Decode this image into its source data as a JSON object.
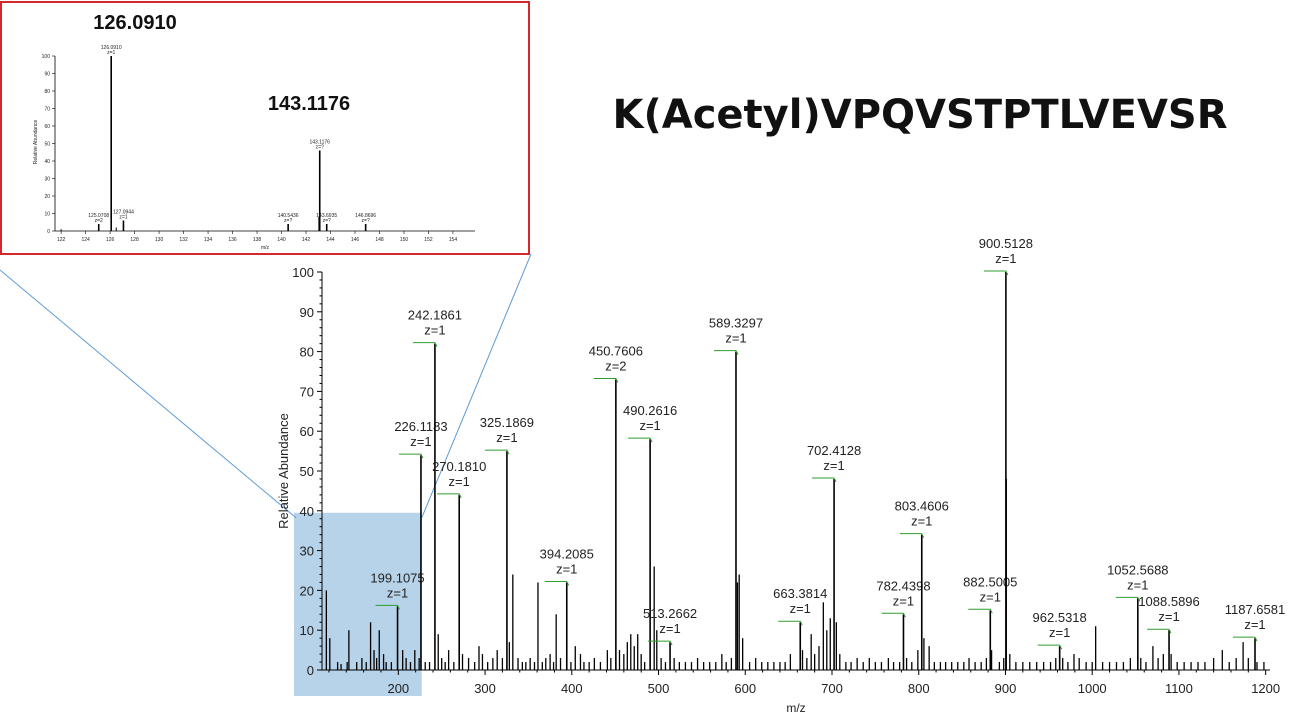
{
  "peptide_title": "K(Acetyl)VPQVSTPTLVEVSR",
  "colors": {
    "inset_border": "#d62828",
    "highlight_fill": "#b7d3ea",
    "connector": "#5b9bd5",
    "tick_marker": "#2e9e2e"
  },
  "chart_data": [
    {
      "id": "main",
      "type": "bar",
      "xlabel": "m/z",
      "ylabel": "Relative Abundance",
      "xlim": [
        112,
        1205
      ],
      "ylim": [
        0,
        100
      ],
      "x_ticks": [
        "200",
        "300",
        "400",
        "500",
        "600",
        "700",
        "800",
        "900",
        "1000",
        "1100",
        "1200"
      ],
      "y_ticks": [
        "0",
        "10",
        "20",
        "30",
        "40",
        "50",
        "60",
        "70",
        "80",
        "90",
        "100"
      ],
      "highlight_region": {
        "x_range": [
          112,
          227
        ],
        "y_range": [
          0,
          39.5
        ]
      },
      "labeled_peaks": [
        {
          "mz": 199.1,
          "intensity": 16,
          "label": "199.1075",
          "charge": "z=1"
        },
        {
          "mz": 226.1,
          "intensity": 54,
          "label": "226.1183",
          "charge": "z=1"
        },
        {
          "mz": 242.2,
          "intensity": 82,
          "label": "242.1861",
          "charge": "z=1"
        },
        {
          "mz": 270.2,
          "intensity": 44,
          "label": "270.1810",
          "charge": "z=1"
        },
        {
          "mz": 325.2,
          "intensity": 55,
          "label": "325.1869",
          "charge": "z=1"
        },
        {
          "mz": 394.2,
          "intensity": 22,
          "label": "394.2085",
          "charge": "z=1"
        },
        {
          "mz": 450.8,
          "intensity": 73,
          "label": "450.7606",
          "charge": "z=2"
        },
        {
          "mz": 490.3,
          "intensity": 58,
          "label": "490.2616",
          "charge": "z=1"
        },
        {
          "mz": 513.3,
          "intensity": 7,
          "label": "513.2662",
          "charge": "z=1"
        },
        {
          "mz": 589.3,
          "intensity": 80,
          "label": "589.3297",
          "charge": "z=1"
        },
        {
          "mz": 663.4,
          "intensity": 12,
          "label": "663.3814",
          "charge": "z=1"
        },
        {
          "mz": 702.4,
          "intensity": 48,
          "label": "702.4128",
          "charge": "z=1"
        },
        {
          "mz": 782.4,
          "intensity": 14,
          "label": "782.4398",
          "charge": "z=1"
        },
        {
          "mz": 803.5,
          "intensity": 34,
          "label": "803.4606",
          "charge": "z=1"
        },
        {
          "mz": 882.5,
          "intensity": 15,
          "label": "882.5005",
          "charge": "z=1"
        },
        {
          "mz": 900.5,
          "intensity": 100,
          "label": "900.5128",
          "charge": "z=1"
        },
        {
          "mz": 962.5,
          "intensity": 6,
          "label": "962.5318",
          "charge": "z=1"
        },
        {
          "mz": 1052.6,
          "intensity": 18,
          "label": "1052.5688",
          "charge": "z=1"
        },
        {
          "mz": 1088.6,
          "intensity": 10,
          "label": "1088.5896",
          "charge": "z=1"
        },
        {
          "mz": 1187.7,
          "intensity": 8,
          "label": "1187.6581",
          "charge": "z=1"
        }
      ],
      "unlabeled_peaks": [
        {
          "mz": 117,
          "intensity": 20
        },
        {
          "mz": 121,
          "intensity": 8
        },
        {
          "mz": 130,
          "intensity": 2
        },
        {
          "mz": 134,
          "intensity": 1.5
        },
        {
          "mz": 141,
          "intensity": 2
        },
        {
          "mz": 143,
          "intensity": 10
        },
        {
          "mz": 152,
          "intensity": 2
        },
        {
          "mz": 158,
          "intensity": 3
        },
        {
          "mz": 163,
          "intensity": 2
        },
        {
          "mz": 168,
          "intensity": 12
        },
        {
          "mz": 172,
          "intensity": 5
        },
        {
          "mz": 175,
          "intensity": 3
        },
        {
          "mz": 178,
          "intensity": 10
        },
        {
          "mz": 183,
          "intensity": 4
        },
        {
          "mz": 186,
          "intensity": 2
        },
        {
          "mz": 192,
          "intensity": 2
        },
        {
          "mz": 205,
          "intensity": 5
        },
        {
          "mz": 209,
          "intensity": 3
        },
        {
          "mz": 214,
          "intensity": 2
        },
        {
          "mz": 219,
          "intensity": 5
        },
        {
          "mz": 224,
          "intensity": 3
        },
        {
          "mz": 231,
          "intensity": 2
        },
        {
          "mz": 236,
          "intensity": 2
        },
        {
          "mz": 246,
          "intensity": 9
        },
        {
          "mz": 250,
          "intensity": 3
        },
        {
          "mz": 254,
          "intensity": 2
        },
        {
          "mz": 258,
          "intensity": 5
        },
        {
          "mz": 264,
          "intensity": 2
        },
        {
          "mz": 274,
          "intensity": 4
        },
        {
          "mz": 281,
          "intensity": 3
        },
        {
          "mz": 288,
          "intensity": 2
        },
        {
          "mz": 293,
          "intensity": 6
        },
        {
          "mz": 297,
          "intensity": 4
        },
        {
          "mz": 303,
          "intensity": 2
        },
        {
          "mz": 309,
          "intensity": 3
        },
        {
          "mz": 314,
          "intensity": 5
        },
        {
          "mz": 320,
          "intensity": 3
        },
        {
          "mz": 328,
          "intensity": 7
        },
        {
          "mz": 332,
          "intensity": 24
        },
        {
          "mz": 338,
          "intensity": 3
        },
        {
          "mz": 343,
          "intensity": 2
        },
        {
          "mz": 347,
          "intensity": 2
        },
        {
          "mz": 352,
          "intensity": 3
        },
        {
          "mz": 357,
          "intensity": 2
        },
        {
          "mz": 361,
          "intensity": 22
        },
        {
          "mz": 366,
          "intensity": 2
        },
        {
          "mz": 370,
          "intensity": 3
        },
        {
          "mz": 375,
          "intensity": 4
        },
        {
          "mz": 379,
          "intensity": 2
        },
        {
          "mz": 382,
          "intensity": 14
        },
        {
          "mz": 387,
          "intensity": 3
        },
        {
          "mz": 399,
          "intensity": 2
        },
        {
          "mz": 404,
          "intensity": 6
        },
        {
          "mz": 410,
          "intensity": 4
        },
        {
          "mz": 414,
          "intensity": 2
        },
        {
          "mz": 420,
          "intensity": 2
        },
        {
          "mz": 426,
          "intensity": 3
        },
        {
          "mz": 433,
          "intensity": 2
        },
        {
          "mz": 441,
          "intensity": 5
        },
        {
          "mz": 445,
          "intensity": 3
        },
        {
          "mz": 455,
          "intensity": 5
        },
        {
          "mz": 460,
          "intensity": 4
        },
        {
          "mz": 464,
          "intensity": 7
        },
        {
          "mz": 468,
          "intensity": 9
        },
        {
          "mz": 472,
          "intensity": 6
        },
        {
          "mz": 476,
          "intensity": 9
        },
        {
          "mz": 480,
          "intensity": 4
        },
        {
          "mz": 484,
          "intensity": 2
        },
        {
          "mz": 495,
          "intensity": 26
        },
        {
          "mz": 498,
          "intensity": 10
        },
        {
          "mz": 503,
          "intensity": 3
        },
        {
          "mz": 508,
          "intensity": 2
        },
        {
          "mz": 518,
          "intensity": 3
        },
        {
          "mz": 524,
          "intensity": 2
        },
        {
          "mz": 531,
          "intensity": 2
        },
        {
          "mz": 538,
          "intensity": 2
        },
        {
          "mz": 545,
          "intensity": 3
        },
        {
          "mz": 552,
          "intensity": 2
        },
        {
          "mz": 559,
          "intensity": 2
        },
        {
          "mz": 566,
          "intensity": 2
        },
        {
          "mz": 573,
          "intensity": 4
        },
        {
          "mz": 578,
          "intensity": 2
        },
        {
          "mz": 584,
          "intensity": 3
        },
        {
          "mz": 591,
          "intensity": 22
        },
        {
          "mz": 593,
          "intensity": 24
        },
        {
          "mz": 597,
          "intensity": 8
        },
        {
          "mz": 605,
          "intensity": 2
        },
        {
          "mz": 612,
          "intensity": 3
        },
        {
          "mz": 619,
          "intensity": 2
        },
        {
          "mz": 626,
          "intensity": 2
        },
        {
          "mz": 633,
          "intensity": 2
        },
        {
          "mz": 640,
          "intensity": 2
        },
        {
          "mz": 646,
          "intensity": 2
        },
        {
          "mz": 652,
          "intensity": 4
        },
        {
          "mz": 666,
          "intensity": 5
        },
        {
          "mz": 671,
          "intensity": 3
        },
        {
          "mz": 676,
          "intensity": 9
        },
        {
          "mz": 680,
          "intensity": 4
        },
        {
          "mz": 685,
          "intensity": 6
        },
        {
          "mz": 690,
          "intensity": 17
        },
        {
          "mz": 694,
          "intensity": 10
        },
        {
          "mz": 698,
          "intensity": 13
        },
        {
          "mz": 705,
          "intensity": 12
        },
        {
          "mz": 709,
          "intensity": 4
        },
        {
          "mz": 716,
          "intensity": 2
        },
        {
          "mz": 722,
          "intensity": 2
        },
        {
          "mz": 729,
          "intensity": 3
        },
        {
          "mz": 736,
          "intensity": 2
        },
        {
          "mz": 743,
          "intensity": 3
        },
        {
          "mz": 750,
          "intensity": 2
        },
        {
          "mz": 757,
          "intensity": 2
        },
        {
          "mz": 765,
          "intensity": 3
        },
        {
          "mz": 771,
          "intensity": 2
        },
        {
          "mz": 778,
          "intensity": 2
        },
        {
          "mz": 786,
          "intensity": 3
        },
        {
          "mz": 792,
          "intensity": 2
        },
        {
          "mz": 799,
          "intensity": 5
        },
        {
          "mz": 806,
          "intensity": 8
        },
        {
          "mz": 812,
          "intensity": 6
        },
        {
          "mz": 818,
          "intensity": 2
        },
        {
          "mz": 825,
          "intensity": 2
        },
        {
          "mz": 831,
          "intensity": 2
        },
        {
          "mz": 838,
          "intensity": 2
        },
        {
          "mz": 845,
          "intensity": 2
        },
        {
          "mz": 852,
          "intensity": 2
        },
        {
          "mz": 858,
          "intensity": 3
        },
        {
          "mz": 865,
          "intensity": 2
        },
        {
          "mz": 872,
          "intensity": 2
        },
        {
          "mz": 878,
          "intensity": 3
        },
        {
          "mz": 884,
          "intensity": 5
        },
        {
          "mz": 893,
          "intensity": 2
        },
        {
          "mz": 898,
          "intensity": 3
        },
        {
          "mz": 901,
          "intensity": 48
        },
        {
          "mz": 905,
          "intensity": 4
        },
        {
          "mz": 912,
          "intensity": 2
        },
        {
          "mz": 920,
          "intensity": 2
        },
        {
          "mz": 928,
          "intensity": 2
        },
        {
          "mz": 936,
          "intensity": 2
        },
        {
          "mz": 944,
          "intensity": 2
        },
        {
          "mz": 952,
          "intensity": 2
        },
        {
          "mz": 958,
          "intensity": 3
        },
        {
          "mz": 966,
          "intensity": 3
        },
        {
          "mz": 972,
          "intensity": 2
        },
        {
          "mz": 979,
          "intensity": 4
        },
        {
          "mz": 985,
          "intensity": 3
        },
        {
          "mz": 993,
          "intensity": 2
        },
        {
          "mz": 1000,
          "intensity": 2
        },
        {
          "mz": 1004,
          "intensity": 11
        },
        {
          "mz": 1012,
          "intensity": 2
        },
        {
          "mz": 1020,
          "intensity": 2
        },
        {
          "mz": 1028,
          "intensity": 2
        },
        {
          "mz": 1036,
          "intensity": 2
        },
        {
          "mz": 1044,
          "intensity": 3
        },
        {
          "mz": 1056,
          "intensity": 3
        },
        {
          "mz": 1062,
          "intensity": 2
        },
        {
          "mz": 1070,
          "intensity": 6
        },
        {
          "mz": 1076,
          "intensity": 3
        },
        {
          "mz": 1082,
          "intensity": 4
        },
        {
          "mz": 1091,
          "intensity": 4
        },
        {
          "mz": 1098,
          "intensity": 2
        },
        {
          "mz": 1106,
          "intensity": 2
        },
        {
          "mz": 1114,
          "intensity": 2
        },
        {
          "mz": 1122,
          "intensity": 2
        },
        {
          "mz": 1130,
          "intensity": 2
        },
        {
          "mz": 1140,
          "intensity": 3
        },
        {
          "mz": 1150,
          "intensity": 5
        },
        {
          "mz": 1158,
          "intensity": 2
        },
        {
          "mz": 1166,
          "intensity": 3
        },
        {
          "mz": 1174,
          "intensity": 7
        },
        {
          "mz": 1180,
          "intensity": 3
        },
        {
          "mz": 1190,
          "intensity": 2
        },
        {
          "mz": 1198,
          "intensity": 2
        }
      ]
    },
    {
      "id": "inset",
      "type": "bar",
      "xlabel": "m/z",
      "ylabel": "Relative Abundance",
      "xlim": [
        121.5,
        155.8
      ],
      "ylim": [
        0,
        100
      ],
      "x_ticks": [
        "122",
        "124",
        "126",
        "128",
        "130",
        "132",
        "134",
        "136",
        "138",
        "140",
        "142",
        "144",
        "146",
        "148",
        "150",
        "152",
        "154"
      ],
      "y_ticks": [
        "0",
        "10",
        "20",
        "30",
        "40",
        "50",
        "60",
        "70",
        "80",
        "90",
        "100"
      ],
      "callouts": [
        {
          "text": "126.0910",
          "near_mz": 126.09
        },
        {
          "text": "143.1176",
          "near_mz": 143.12
        }
      ],
      "labeled_peaks": [
        {
          "mz": 125.07,
          "intensity": 4,
          "label": "125.0708",
          "charge": "z=2"
        },
        {
          "mz": 126.09,
          "intensity": 100,
          "label": "126.0910",
          "charge": "z=1"
        },
        {
          "mz": 127.09,
          "intensity": 6,
          "label": "127.0944",
          "charge": "z=1"
        },
        {
          "mz": 140.54,
          "intensity": 4,
          "label": "140.5436",
          "charge": "z=?"
        },
        {
          "mz": 143.12,
          "intensity": 46,
          "label": "143.1176",
          "charge": "z=?"
        },
        {
          "mz": 143.69,
          "intensity": 4,
          "label": "143.6935",
          "charge": "z=?"
        },
        {
          "mz": 146.87,
          "intensity": 4,
          "label": "146.8696",
          "charge": "z=?"
        }
      ],
      "unlabeled_peaks": [
        {
          "mz": 122.0,
          "intensity": 1
        },
        {
          "mz": 126.5,
          "intensity": 2
        },
        {
          "mz": 143.05,
          "intensity": 8
        }
      ]
    }
  ]
}
